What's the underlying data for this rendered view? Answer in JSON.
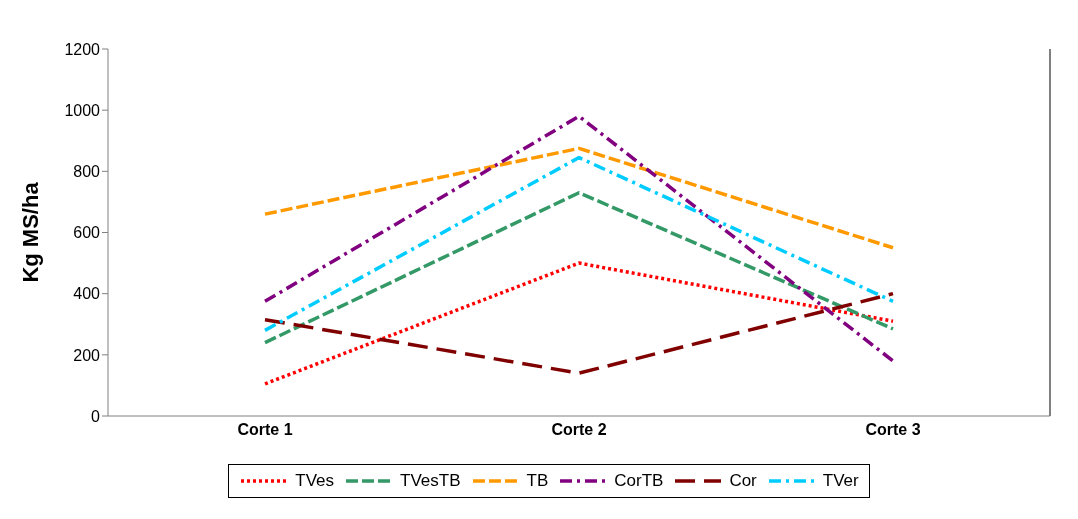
{
  "chart_data": {
    "type": "line",
    "ylabel": "Kg MS/ha",
    "categories": [
      "Corte 1",
      "Corte 2",
      "Corte 3"
    ],
    "ylim": [
      0,
      1200
    ],
    "yticks": [
      0,
      200,
      400,
      600,
      800,
      1000,
      1200
    ],
    "grid": false,
    "legend": "bottom",
    "marker": "none",
    "series": [
      {
        "name": "TVes",
        "color": "#ff0000",
        "line_style": "dotted",
        "values": [
          105,
          500,
          310
        ]
      },
      {
        "name": "TVesTB",
        "color": "#339966",
        "line_style": "dashed",
        "values": [
          240,
          730,
          285
        ]
      },
      {
        "name": "TB",
        "color": "#ff9900",
        "line_style": "dashed",
        "values": [
          660,
          875,
          550
        ]
      },
      {
        "name": "CorTB",
        "color": "#800080",
        "line_style": "dashdot",
        "values": [
          375,
          980,
          180
        ]
      },
      {
        "name": "Cor",
        "color": "#800000",
        "line_style": "longdash",
        "values": [
          315,
          140,
          400
        ]
      },
      {
        "name": "TVer",
        "color": "#00ccff",
        "line_style": "dashdot",
        "values": [
          280,
          845,
          375
        ]
      }
    ]
  }
}
